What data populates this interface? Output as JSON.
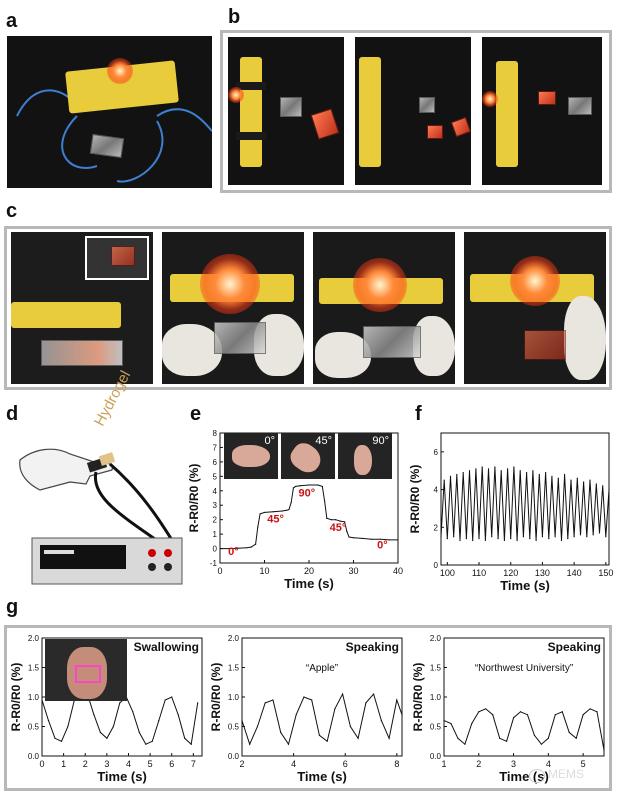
{
  "panel_labels": {
    "a": "a",
    "b": "b",
    "c": "c",
    "d": "d",
    "e": "e",
    "f": "f",
    "g": "g"
  },
  "device_label": "Hydrogel",
  "watermark": "MEMS",
  "colors": {
    "frame": "#b8b8b8",
    "angle_label": "#cc1111",
    "photo_bg": "#121212",
    "block": "#e8cc3c",
    "wire": "#3f7fd0"
  },
  "chart_data": [
    {
      "id": "e",
      "type": "line",
      "xlabel": "Time (s)",
      "ylabel": "R-R0/R0 (%)",
      "xlim": [
        0,
        40
      ],
      "ylim": [
        -1,
        8
      ],
      "xticks": [
        0,
        10,
        20,
        30,
        40
      ],
      "yticks": [
        -1,
        0,
        1,
        2,
        3,
        4,
        5,
        6,
        7,
        8
      ],
      "series": [
        {
          "x": [
            0,
            2,
            4,
            6,
            7,
            8,
            8.5,
            9,
            10,
            12,
            14,
            15,
            15.5,
            16,
            16.5,
            17,
            18,
            20,
            22,
            23,
            23.5,
            24,
            25,
            26,
            27,
            28,
            28.5,
            29,
            30,
            32,
            34,
            36,
            38,
            40
          ],
          "y": [
            0,
            0,
            0.02,
            0.05,
            0.1,
            0.3,
            1.5,
            2.4,
            2.5,
            2.55,
            2.6,
            2.65,
            2.7,
            3.2,
            4.2,
            4.3,
            4.35,
            4.4,
            4.4,
            4.3,
            3.3,
            2.1,
            2.0,
            2.0,
            1.9,
            1.85,
            1.2,
            0.8,
            0.75,
            0.7,
            0.65,
            0.65,
            0.6,
            0.6
          ]
        }
      ],
      "annotations": [
        {
          "text": "0°",
          "x": 3,
          "y": -0.45
        },
        {
          "text": "45°",
          "x": 12.5,
          "y": 1.8
        },
        {
          "text": "90°",
          "x": 19.5,
          "y": 3.6
        },
        {
          "text": "45°",
          "x": 26.5,
          "y": 1.2
        },
        {
          "text": "0°",
          "x": 36.5,
          "y": 0.0
        }
      ],
      "inset_angles": [
        "0°",
        "45°",
        "90°"
      ]
    },
    {
      "id": "f",
      "type": "line",
      "xlabel": "Time (s)",
      "ylabel": "R-R0/R0 (%)",
      "xlim": [
        98,
        151
      ],
      "ylim": [
        0,
        7
      ],
      "xticks": [
        100,
        110,
        120,
        130,
        140,
        150
      ],
      "yticks": [
        0,
        2,
        4,
        6
      ],
      "series": [
        {
          "x": [
            98,
            99,
            100,
            101,
            102,
            103,
            104,
            105,
            106,
            107,
            108,
            109,
            110,
            111,
            112,
            113,
            114,
            115,
            116,
            117,
            118,
            119,
            120,
            121,
            122,
            123,
            124,
            125,
            126,
            127,
            128,
            129,
            130,
            131,
            132,
            133,
            134,
            135,
            136,
            137,
            138,
            139,
            140,
            141,
            142,
            143,
            144,
            145,
            146,
            147,
            148,
            149,
            150,
            151
          ],
          "y": [
            1.5,
            4.5,
            1.4,
            4.7,
            1.5,
            4.8,
            1.3,
            4.9,
            1.4,
            5.0,
            1.3,
            5.1,
            1.4,
            5.2,
            1.3,
            5.1,
            1.5,
            5.2,
            1.4,
            5.0,
            1.3,
            5.1,
            1.4,
            5.2,
            1.3,
            5.0,
            1.5,
            4.9,
            1.4,
            5.0,
            1.3,
            4.8,
            1.5,
            4.9,
            1.4,
            4.7,
            1.5,
            4.6,
            1.3,
            4.8,
            1.4,
            4.5,
            1.5,
            4.6,
            1.6,
            4.4,
            1.5,
            4.5,
            1.6,
            4.3,
            1.7,
            4.2,
            1.5,
            4.0
          ]
        }
      ]
    },
    {
      "id": "g1",
      "type": "line",
      "xlabel": "Time (s)",
      "ylabel": "R-R0/R0 (%)",
      "title": "Swallowing",
      "xlim": [
        0,
        7.4
      ],
      "ylim": [
        0,
        2.0
      ],
      "xticks": [
        0,
        1,
        2,
        3,
        4,
        5,
        6,
        7
      ],
      "yticks": [
        0.0,
        0.5,
        1.0,
        1.5,
        2.0
      ],
      "series": [
        {
          "x": [
            0,
            0.3,
            0.6,
            0.9,
            1.2,
            1.5,
            1.8,
            2.1,
            2.4,
            2.7,
            3.0,
            3.3,
            3.6,
            3.9,
            4.2,
            4.5,
            4.8,
            5.1,
            5.4,
            5.7,
            6.0,
            6.3,
            6.6,
            6.9,
            7.2
          ],
          "y": [
            0.95,
            0.6,
            0.3,
            0.25,
            0.5,
            0.95,
            1.1,
            1.05,
            0.7,
            0.4,
            0.3,
            0.5,
            0.9,
            1.0,
            0.75,
            0.4,
            0.2,
            0.25,
            0.6,
            0.95,
            1.0,
            0.7,
            0.3,
            0.2,
            0.9
          ]
        }
      ]
    },
    {
      "id": "g2",
      "type": "line",
      "xlabel": "Time (s)",
      "ylabel": "R-R0/R0 (%)",
      "title": "Speaking",
      "subtitle": "“Apple”",
      "xlim": [
        2,
        8.2
      ],
      "ylim": [
        0,
        2.0
      ],
      "xticks": [
        2,
        4,
        6,
        8
      ],
      "yticks": [
        0.0,
        0.5,
        1.0,
        1.5,
        2.0
      ],
      "series": [
        {
          "x": [
            2,
            2.3,
            2.6,
            2.9,
            3.2,
            3.5,
            3.8,
            4.1,
            4.4,
            4.7,
            5.0,
            5.3,
            5.6,
            5.9,
            6.2,
            6.5,
            6.8,
            7.1,
            7.4,
            7.7,
            8.0,
            8.2
          ],
          "y": [
            0.6,
            0.2,
            0.5,
            0.9,
            0.95,
            0.4,
            0.2,
            0.7,
            1.0,
            0.95,
            0.35,
            0.25,
            0.8,
            1.05,
            0.5,
            0.3,
            0.9,
            1.05,
            0.6,
            0.3,
            0.95,
            0.7
          ]
        }
      ]
    },
    {
      "id": "g3",
      "type": "line",
      "xlabel": "Time (s)",
      "ylabel": "R-R0/R0 (%)",
      "title": "Speaking",
      "subtitle": "“Northwest University”",
      "xlim": [
        1,
        5.6
      ],
      "ylim": [
        0,
        2.0
      ],
      "xticks": [
        1,
        2,
        3,
        4,
        5
      ],
      "yticks": [
        0.0,
        0.5,
        1.0,
        1.5,
        2.0
      ],
      "series": [
        {
          "x": [
            1,
            1.2,
            1.4,
            1.6,
            1.8,
            2.0,
            2.2,
            2.4,
            2.6,
            2.8,
            3.0,
            3.2,
            3.4,
            3.6,
            3.8,
            4.0,
            4.2,
            4.4,
            4.6,
            4.8,
            5.0,
            5.2,
            5.4,
            5.6
          ],
          "y": [
            0.6,
            0.55,
            0.3,
            0.2,
            0.55,
            0.75,
            0.8,
            0.7,
            0.3,
            0.25,
            0.65,
            0.75,
            0.7,
            0.35,
            0.2,
            0.3,
            0.7,
            0.75,
            0.4,
            0.3,
            0.7,
            0.8,
            0.75,
            0.1
          ]
        }
      ]
    }
  ]
}
